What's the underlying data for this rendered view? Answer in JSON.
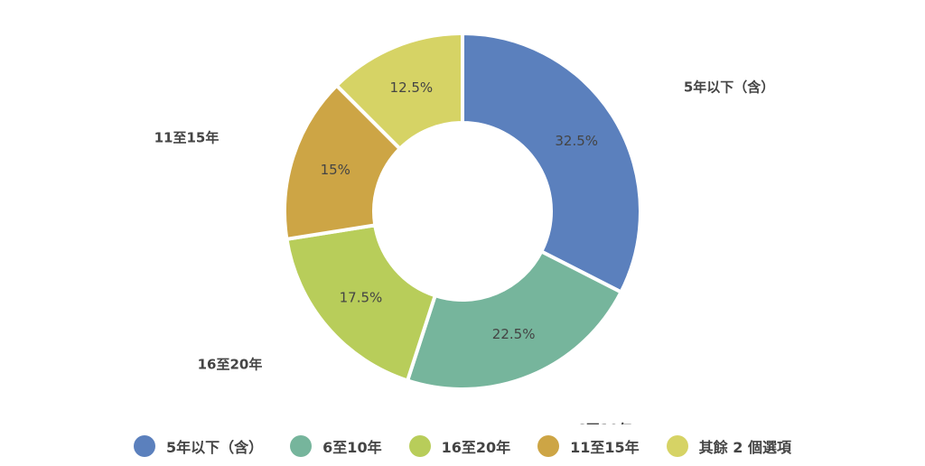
{
  "chart_data": {
    "type": "donut",
    "categories": [
      "5年以下（含）",
      "6至10年",
      "16至20年",
      "11至15年",
      "其餘 2 個選項"
    ],
    "values": [
      32.5,
      22.5,
      17.5,
      15,
      12.5
    ],
    "value_labels": [
      "32.5%",
      "22.5%",
      "17.5%",
      "15%",
      "12.5%"
    ],
    "colors": [
      "#5b80bd",
      "#76b59c",
      "#b8cd5a",
      "#cda545",
      "#d6d365"
    ],
    "legend": "bottom"
  }
}
